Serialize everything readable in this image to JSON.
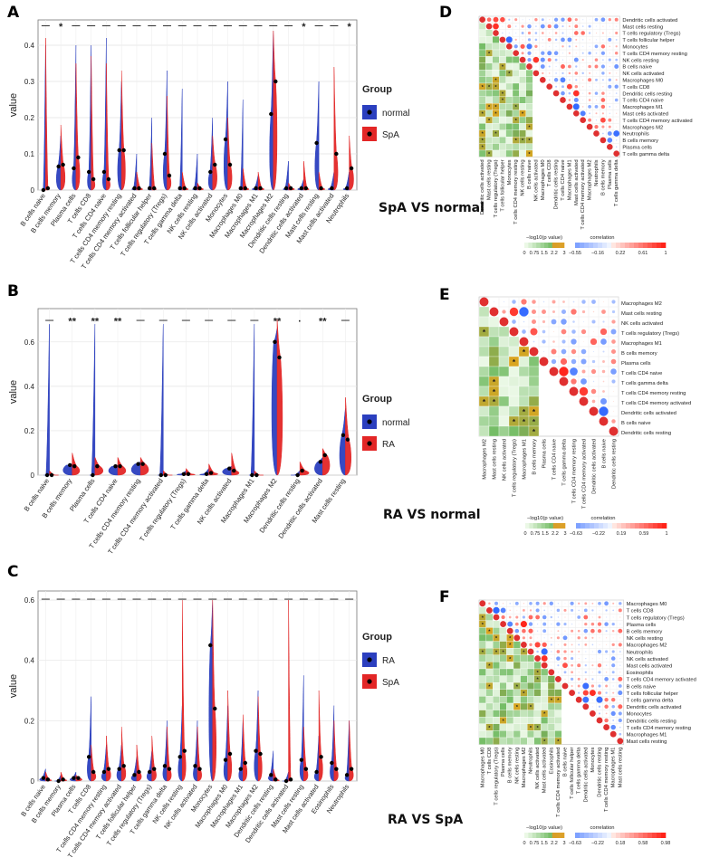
{
  "panels": {
    "A": {
      "letter": "A",
      "type": "violin",
      "ylabel": "value",
      "ylim": [
        0,
        0.47
      ],
      "yticks": [
        0,
        0.1,
        0.2,
        0.3,
        0.4
      ],
      "legend": {
        "title": "Group",
        "groups": [
          "normal",
          "SpA"
        ]
      },
      "colors": [
        "#2b3fbf",
        "#e32626"
      ],
      "categories": [
        "B cells naive",
        "B cells memory",
        "Plasma cells",
        "T cells CD8",
        "T cells CD4 naive",
        "T cells CD4 memory resting",
        "T cells CD4 memory activated",
        "T cells follicular helper",
        "T cells regulatory (Tregs)",
        "T cells gamma delta",
        "NK cells resting",
        "NK cells activated",
        "Monocytes",
        "Macrophages M0",
        "Macrophages M1",
        "Macrophages M2",
        "Dendritic cells resting",
        "Dendritic cells activated",
        "Mast cells resting",
        "Mast cells activated",
        "Neutrophils"
      ],
      "marks": [
        "—",
        "*",
        "—",
        "—",
        "—",
        "—",
        "—",
        "—",
        "—",
        "—",
        "—",
        "—",
        "—",
        "—",
        "—",
        "—",
        "—",
        "*",
        "—",
        "—",
        "*"
      ],
      "sig_y": 0.455,
      "medians_a": [
        0.0,
        0.065,
        0.06,
        0.05,
        0.05,
        0.11,
        0.005,
        0.005,
        0.1,
        0.005,
        0.005,
        0.05,
        0.14,
        0.005,
        0.005,
        0.21,
        0.005,
        0.005,
        0.13,
        0.005,
        0.005
      ],
      "medians_b": [
        0.005,
        0.07,
        0.09,
        0.03,
        0.03,
        0.11,
        0.005,
        0.005,
        0.04,
        0.005,
        0.005,
        0.07,
        0.07,
        0.005,
        0.005,
        0.3,
        0.005,
        0.005,
        0.005,
        0.1,
        0.06
      ],
      "max_a": [
        0.4,
        0.15,
        0.4,
        0.4,
        0.42,
        0.3,
        0.1,
        0.2,
        0.33,
        0.28,
        0.1,
        0.2,
        0.3,
        0.25,
        0.04,
        0.44,
        0.08,
        0.03,
        0.3,
        0.05,
        0.05
      ],
      "max_b": [
        0.42,
        0.18,
        0.35,
        0.37,
        0.35,
        0.33,
        0.05,
        0.13,
        0.26,
        0.05,
        0.02,
        0.15,
        0.2,
        0.06,
        0.05,
        0.44,
        0.02,
        0.08,
        0.05,
        0.34,
        0.15
      ]
    },
    "B": {
      "letter": "B",
      "type": "violin",
      "ylabel": "value",
      "ylim": [
        0,
        0.75
      ],
      "yticks": [
        0,
        0.2,
        0.4,
        0.6
      ],
      "legend": {
        "title": "Group",
        "groups": [
          "normal",
          "RA"
        ]
      },
      "colors": [
        "#2b3fbf",
        "#e32626"
      ],
      "categories": [
        "B cells naive",
        "B cells memory",
        "Plasma cells",
        "T cells CD4 naive",
        "T cells CD4 memory resting",
        "T cells CD4 memory activated",
        "T cells regulatory (Tregs)",
        "T cells gamma delta",
        "NK cells activated",
        "Macrophages M1",
        "Macrophages M2",
        "Dendritic cells resting",
        "Dendritic cells activated",
        "Mast cells resting"
      ],
      "marks": [
        "—",
        "**",
        "**",
        "**",
        "—",
        "—",
        "—",
        "—",
        "—",
        "—",
        "**",
        "·",
        "**",
        "—"
      ],
      "sig_y": 0.7,
      "medians_a": [
        0.0,
        0.045,
        0.0,
        0.04,
        0.05,
        0.0,
        0.005,
        0.005,
        0.03,
        0.0,
        0.6,
        0.0,
        0.06,
        0.18
      ],
      "medians_b": [
        0.0,
        0.04,
        0.04,
        0.04,
        0.05,
        0.0,
        0.005,
        0.01,
        0.02,
        0.0,
        0.53,
        0.02,
        0.09,
        0.16
      ],
      "max_a": [
        0.68,
        0.02,
        0.68,
        0.02,
        0.06,
        0.68,
        0.02,
        0.03,
        0.04,
        0.68,
        0.66,
        0.02,
        0.08,
        0.3
      ],
      "max_b": [
        0.02,
        0.1,
        0.08,
        0.08,
        0.08,
        0.02,
        0.03,
        0.05,
        0.1,
        0.02,
        0.7,
        0.06,
        0.12,
        0.35
      ]
    },
    "C": {
      "letter": "C",
      "type": "violin",
      "ylabel": "value",
      "ylim": [
        0,
        0.63
      ],
      "yticks": [
        0,
        0.2,
        0.4,
        0.6
      ],
      "legend": {
        "title": "Group",
        "groups": [
          "RA",
          "SpA"
        ]
      },
      "colors": [
        "#2b3fbf",
        "#e32626"
      ],
      "categories": [
        "B cells naive",
        "B cells memory",
        "Plasma cells",
        "T cells CD8",
        "T cells CD4 memory resting",
        "T cells CD4 memory activated",
        "T cells follicular helper",
        "T cells regulatory (Tregs)",
        "T cells gamma delta",
        "NK cells resting",
        "NK cells activated",
        "Monocytes",
        "Macrophages M0",
        "Macrophages M1",
        "Macrophages M2",
        "Dendritic cells resting",
        "Dendritic cells activated",
        "Mast cells resting",
        "Mast cells activated",
        "Eosinophils",
        "Neutrophils"
      ],
      "marks": [
        "—",
        "—",
        "—",
        "—",
        "—",
        "—",
        "—",
        "—",
        "—",
        "—",
        "—",
        "—",
        "—",
        "—",
        "—",
        "—",
        "—",
        "—",
        "—",
        "—",
        "—"
      ],
      "sig_y": 0.605,
      "medians_a": [
        0.01,
        0.0,
        0.01,
        0.08,
        0.03,
        0.04,
        0.02,
        0.03,
        0.05,
        0.08,
        0.05,
        0.45,
        0.07,
        0.04,
        0.1,
        0.02,
        0.0,
        0.07,
        0.03,
        0.06,
        0.02
      ],
      "medians_b": [
        0.005,
        0.005,
        0.01,
        0.03,
        0.04,
        0.05,
        0.03,
        0.04,
        0.04,
        0.1,
        0.04,
        0.24,
        0.09,
        0.06,
        0.09,
        0.005,
        0.005,
        0.04,
        0.08,
        0.04,
        0.04
      ],
      "max_a": [
        0.04,
        0.02,
        0.03,
        0.28,
        0.12,
        0.12,
        0.08,
        0.1,
        0.2,
        0.25,
        0.2,
        0.6,
        0.25,
        0.2,
        0.3,
        0.1,
        0.03,
        0.35,
        0.15,
        0.25,
        0.2
      ],
      "max_b": [
        0.03,
        0.03,
        0.02,
        0.12,
        0.15,
        0.18,
        0.12,
        0.15,
        0.18,
        0.6,
        0.18,
        0.6,
        0.3,
        0.22,
        0.28,
        0.04,
        0.6,
        0.18,
        0.3,
        0.2,
        0.2
      ]
    },
    "D": {
      "letter": "D",
      "type": "heatmap",
      "caption": "SpA VS normal",
      "labels": [
        "Dendritic cells activated",
        "Mast cells resting",
        "T cells regulatory (Tregs)",
        "T cells follicular helper",
        "Monocytes",
        "T cells CD4 memory resting",
        "NK cells resting",
        "B cells naive",
        "NK cells activated",
        "Macrophages M0",
        "T cells CD8",
        "Dendritic cells resting",
        "T cells CD4 naive",
        "Macrophages M1",
        "Mast cells activated",
        "T cells CD4 memory activated",
        "Macrophages M2",
        "Neutrophils",
        "B cells memory",
        "Plasma cells",
        "T cells gamma delta"
      ],
      "legend_p_title": "−log10(p value)",
      "legend_p_ticks": [
        "0",
        "0.75",
        "1.5",
        "2.2",
        "3"
      ],
      "legend_c_title": "correlation",
      "legend_c_ticks": [
        "−0.55",
        "−0.16",
        "0.22",
        "0.61",
        "1"
      ]
    },
    "E": {
      "letter": "E",
      "type": "heatmap",
      "caption": "RA VS normal",
      "labels": [
        "Macrophages M2",
        "Mast cells resting",
        "NK cells activated",
        "T cells regulatory (Tregs)",
        "Macrophages M1",
        "B cells memory",
        "Plasma cells",
        "T cells CD4 naive",
        "T cells gamma delta",
        "T cells CD4 memory resting",
        "T cells CD4 memory activated",
        "Dendritic cells activated",
        "B cells naive",
        "Dendritic cells resting"
      ],
      "legend_p_title": "−log10(p value)",
      "legend_p_ticks": [
        "0",
        "0.75",
        "1.5",
        "2.2",
        "3"
      ],
      "legend_c_title": "correlation",
      "legend_c_ticks": [
        "−0.63",
        "−0.22",
        "0.19",
        "0.59",
        "1"
      ]
    },
    "F": {
      "letter": "F",
      "type": "heatmap",
      "caption": "RA VS SpA",
      "labels": [
        "Macrophages M0",
        "T cells CD8",
        "T cells regulatory (Tregs)",
        "Plasma cells",
        "B cells memory",
        "NK cells resting",
        "Macrophages M2",
        "Neutrophils",
        "NK cells activated",
        "Mast cells activated",
        "Eosinophils",
        "T cells CD4 memory activated",
        "B cells naive",
        "T cells follicular helper",
        "T cells gamma delta",
        "Dendritic cells activated",
        "Monocytes",
        "Dendritic cells resting",
        "T cells CD4 memory resting",
        "Macrophages M1",
        "Mast cells resting"
      ],
      "legend_p_title": "−log10(p value)",
      "legend_p_ticks": [
        "0",
        "0.75",
        "1.5",
        "2.2",
        "3"
      ],
      "legend_c_title": "correlation",
      "legend_c_ticks": [
        "−0.63",
        "−0.22",
        "0.18",
        "0.58",
        "0.98"
      ]
    }
  }
}
